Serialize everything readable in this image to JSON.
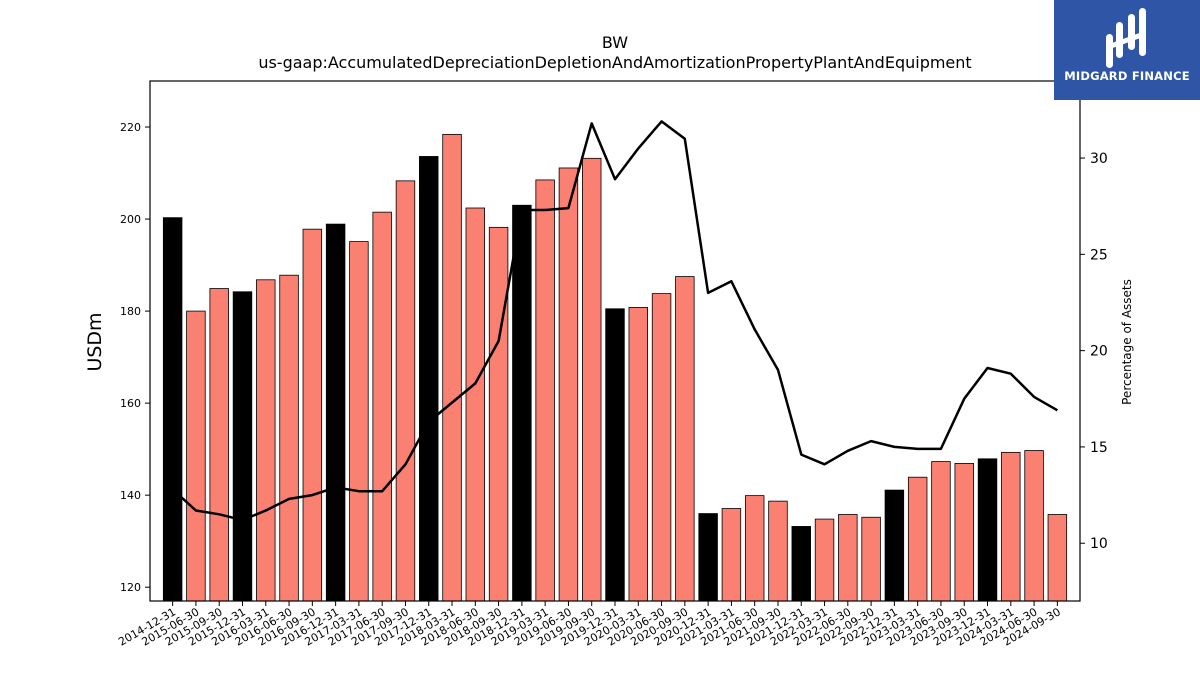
{
  "chart_data": {
    "type": "bar+line",
    "title": "BW",
    "subtitle": "us-gaap:AccumulatedDepreciationDepletionAndAmortizationPropertyPlantAndEquipment",
    "ylabel": "USDm",
    "ylabel_right": "Percentage of Assets",
    "ylim": [
      117,
      230
    ],
    "ylim_right": [
      7,
      34
    ],
    "yticks": [
      120,
      140,
      160,
      180,
      200,
      220
    ],
    "yticks_right": [
      10,
      15,
      20,
      25,
      30
    ],
    "categories": [
      "2014-12-31",
      "2015-06-30",
      "2015-09-30",
      "2015-12-31",
      "2016-03-31",
      "2016-06-30",
      "2016-09-30",
      "2016-12-31",
      "2017-03-31",
      "2017-06-30",
      "2017-09-30",
      "2017-12-31",
      "2018-03-31",
      "2018-06-30",
      "2018-09-30",
      "2018-12-31",
      "2019-03-31",
      "2019-06-30",
      "2019-09-30",
      "2019-12-31",
      "2020-03-31",
      "2020-06-30",
      "2020-09-30",
      "2020-12-31",
      "2021-03-31",
      "2021-06-30",
      "2021-09-30",
      "2021-12-31",
      "2022-03-31",
      "2022-06-30",
      "2022-09-30",
      "2022-12-31",
      "2023-03-31",
      "2023-06-30",
      "2023-09-30",
      "2023-12-31",
      "2024-03-31",
      "2024-06-30",
      "2024-09-30"
    ],
    "series": [
      {
        "type": "bar",
        "values": [
          200.3,
          180.0,
          184.9,
          184.2,
          186.8,
          187.8,
          197.8,
          198.9,
          195.1,
          201.5,
          208.3,
          213.6,
          218.4,
          202.4,
          198.2,
          203.0,
          208.5,
          211.1,
          213.2,
          180.5,
          180.8,
          183.8,
          187.5,
          136.0,
          137.1,
          139.9,
          138.7,
          133.2,
          134.8,
          135.8,
          135.2,
          141.1,
          143.9,
          147.3,
          146.9,
          147.9,
          149.3,
          149.7,
          135.8
        ]
      },
      {
        "type": "line",
        "values": [
          12.8,
          11.7,
          11.5,
          11.2,
          11.7,
          12.3,
          12.5,
          12.9,
          12.7,
          12.7,
          14.1,
          16.3,
          17.3,
          18.3,
          20.5,
          27.3,
          27.3,
          27.4,
          31.8,
          28.9,
          30.5,
          31.9,
          31.0,
          23.0,
          23.6,
          21.1,
          19.0,
          14.6,
          14.1,
          14.8,
          15.3,
          15.0,
          14.9,
          14.9,
          17.5,
          19.1,
          18.8,
          17.6,
          16.9
        ]
      }
    ],
    "bar_colors": {
      "year_end": "#000000",
      "quarter": "#fa8072"
    },
    "line_color": "#000000"
  },
  "branding": {
    "name": "MIDGARD FINANCE",
    "background": "#2f56a6",
    "icon": "midgard-logo-icon"
  }
}
